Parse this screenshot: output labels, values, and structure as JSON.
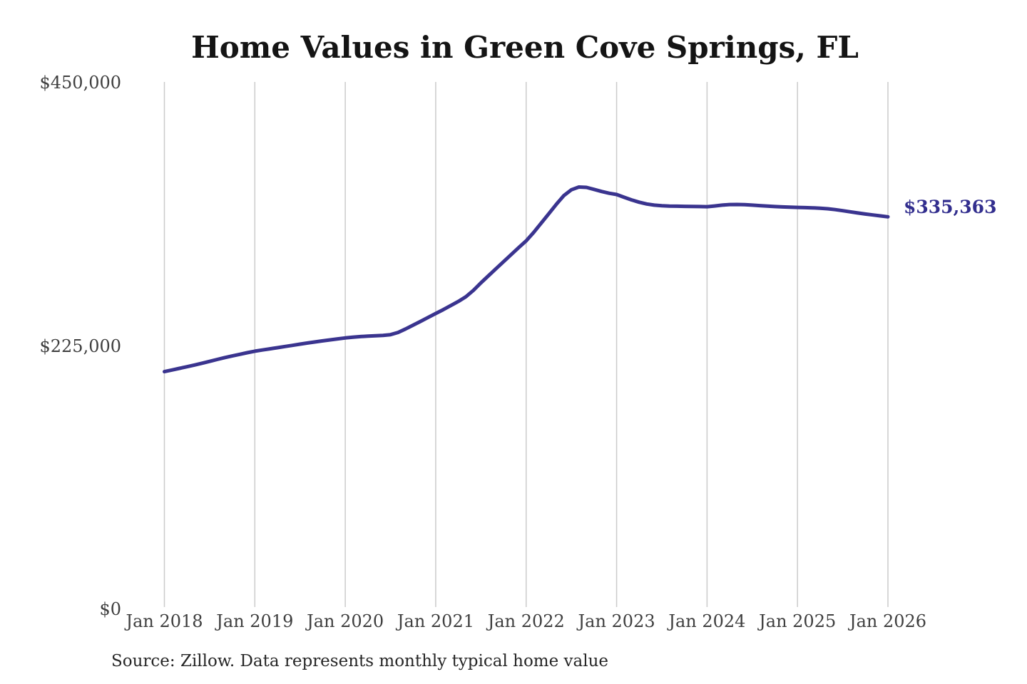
{
  "chart": {
    "title": "Home Values in Green Cove Springs, FL",
    "end_label": "$335,363",
    "source": "Source: Zillow. Data represents monthly typical home value",
    "colors": {
      "line": "#3a348f",
      "end_label": "#322e8e",
      "grid": "#cbcbcb",
      "axis_text": "#3f3f3f",
      "title_text": "#141414",
      "source_text": "#262626"
    }
  },
  "chart_data": {
    "type": "line",
    "title": "Home Values in Green Cove Springs, FL",
    "xlabel": "",
    "ylabel": "",
    "x_start": "2018-01",
    "x_interval": "monthly",
    "x_tick_labels": [
      "Jan 2018",
      "Jan 2019",
      "Jan 2020",
      "Jan 2021",
      "Jan 2022",
      "Jan 2023",
      "Jan 2024",
      "Jan 2025",
      "Jan 2026"
    ],
    "y_tick_values": [
      0,
      225000,
      450000
    ],
    "y_tick_labels": [
      "$0",
      "$225,000",
      "$450,000"
    ],
    "ylim": [
      0,
      450000
    ],
    "grid": "vertical-only",
    "legend": "none",
    "end_annotation": {
      "text": "$335,363",
      "value": 335363,
      "x": "2026-01"
    },
    "series": [
      {
        "name": "Typical home value",
        "values": [
          203000,
          204400,
          205800,
          207200,
          208700,
          210200,
          211800,
          213400,
          215000,
          216400,
          217800,
          219200,
          220500,
          221500,
          222500,
          223500,
          224500,
          225500,
          226500,
          227500,
          228400,
          229300,
          230200,
          231000,
          231800,
          232400,
          233000,
          233400,
          233700,
          234000,
          234600,
          236500,
          239500,
          242700,
          246000,
          249400,
          252700,
          256000,
          259500,
          263000,
          267000,
          272500,
          278900,
          285000,
          291000,
          297000,
          303000,
          309000,
          314800,
          322000,
          330000,
          338000,
          346000,
          353500,
          358500,
          360800,
          360500,
          358800,
          357000,
          355500,
          354400,
          352000,
          349800,
          347800,
          346300,
          345300,
          344800,
          344500,
          344400,
          344300,
          344200,
          344100,
          344000,
          344600,
          345300,
          345800,
          345900,
          345700,
          345300,
          344900,
          344500,
          344100,
          343800,
          343600,
          343400,
          343200,
          343000,
          342700,
          342200,
          341500,
          340600,
          339600,
          338600,
          337700,
          336900,
          336100,
          335363
        ]
      }
    ]
  }
}
